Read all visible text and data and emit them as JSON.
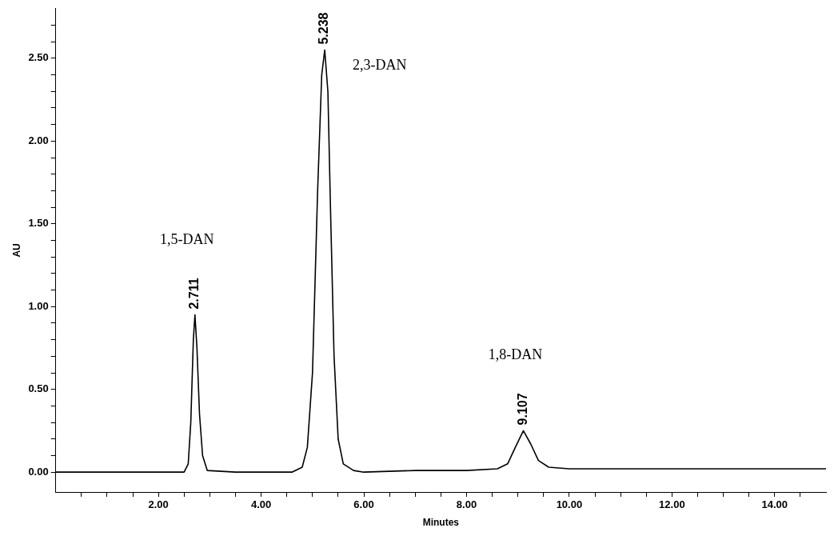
{
  "chart_data": {
    "type": "line",
    "xlabel": "Minutes",
    "ylabel": "AU",
    "color": "#000000",
    "marker": "none",
    "grid": false,
    "legend": false,
    "x": [
      0,
      1,
      2,
      2.5,
      2.58,
      2.63,
      2.68,
      2.711,
      2.75,
      2.8,
      2.86,
      2.95,
      3.5,
      4,
      4.6,
      4.8,
      4.9,
      5.0,
      5.1,
      5.18,
      5.238,
      5.3,
      5.35,
      5.42,
      5.5,
      5.6,
      5.8,
      6,
      7,
      8,
      8.6,
      8.8,
      8.95,
      9.107,
      9.25,
      9.4,
      9.6,
      10,
      12,
      14,
      15
    ],
    "values": [
      0,
      0,
      0,
      0,
      0.05,
      0.3,
      0.8,
      0.95,
      0.75,
      0.35,
      0.1,
      0.01,
      0,
      0,
      0,
      0.03,
      0.15,
      0.6,
      1.7,
      2.4,
      2.55,
      2.3,
      1.6,
      0.7,
      0.2,
      0.05,
      0.01,
      0,
      0.01,
      0.01,
      0.02,
      0.05,
      0.15,
      0.25,
      0.17,
      0.07,
      0.03,
      0.02,
      0.02,
      0.02,
      0.02
    ],
    "xlim": [
      0,
      15
    ],
    "ylim": [
      -0.12,
      2.8
    ],
    "xticks": [
      {
        "value": 0.5,
        "label": null
      },
      {
        "value": 1,
        "label": null
      },
      {
        "value": 1.5,
        "label": null
      },
      {
        "value": 2,
        "label": "2.00"
      },
      {
        "value": 2.5,
        "label": null
      },
      {
        "value": 3,
        "label": null
      },
      {
        "value": 3.5,
        "label": null
      },
      {
        "value": 4,
        "label": "4.00"
      },
      {
        "value": 4.5,
        "label": null
      },
      {
        "value": 5,
        "label": null
      },
      {
        "value": 5.5,
        "label": null
      },
      {
        "value": 6,
        "label": "6.00"
      },
      {
        "value": 6.5,
        "label": null
      },
      {
        "value": 7,
        "label": null
      },
      {
        "value": 7.5,
        "label": null
      },
      {
        "value": 8,
        "label": "8.00"
      },
      {
        "value": 8.5,
        "label": null
      },
      {
        "value": 9,
        "label": null
      },
      {
        "value": 9.5,
        "label": null
      },
      {
        "value": 10,
        "label": "10.00"
      },
      {
        "value": 10.5,
        "label": null
      },
      {
        "value": 11,
        "label": null
      },
      {
        "value": 11.5,
        "label": null
      },
      {
        "value": 12,
        "label": "12.00"
      },
      {
        "value": 12.5,
        "label": null
      },
      {
        "value": 13,
        "label": null
      },
      {
        "value": 13.5,
        "label": null
      },
      {
        "value": 14,
        "label": "14.00"
      },
      {
        "value": 14.5,
        "label": null
      }
    ],
    "yticks": [
      {
        "value": 0,
        "label": "0.00"
      },
      {
        "value": 0.1,
        "label": null
      },
      {
        "value": 0.2,
        "label": null
      },
      {
        "value": 0.3,
        "label": null
      },
      {
        "value": 0.4,
        "label": null
      },
      {
        "value": 0.5,
        "label": "0.50"
      },
      {
        "value": 0.6,
        "label": null
      },
      {
        "value": 0.7,
        "label": null
      },
      {
        "value": 0.8,
        "label": null
      },
      {
        "value": 0.9,
        "label": null
      },
      {
        "value": 1,
        "label": "1.00"
      },
      {
        "value": 1.1,
        "label": null
      },
      {
        "value": 1.2,
        "label": null
      },
      {
        "value": 1.3,
        "label": null
      },
      {
        "value": 1.4,
        "label": null
      },
      {
        "value": 1.5,
        "label": "1.50"
      },
      {
        "value": 1.6,
        "label": null
      },
      {
        "value": 1.7,
        "label": null
      },
      {
        "value": 1.8,
        "label": null
      },
      {
        "value": 1.9,
        "label": null
      },
      {
        "value": 2,
        "label": "2.00"
      },
      {
        "value": 2.1,
        "label": null
      },
      {
        "value": 2.2,
        "label": null
      },
      {
        "value": 2.3,
        "label": null
      },
      {
        "value": 2.4,
        "label": null
      },
      {
        "value": 2.5,
        "label": "2.50"
      },
      {
        "value": 2.6,
        "label": null
      },
      {
        "value": 2.7,
        "label": null
      }
    ],
    "annotations": [
      {
        "text": "2.711",
        "x": 2.711,
        "y": 0.95
      },
      {
        "text": "5.238",
        "x": 5.238,
        "y": 2.55
      },
      {
        "text": "9.107",
        "x": 9.107,
        "y": 0.25
      },
      "1,5-DAN",
      "2,3-DAN",
      "1,8-DAN"
    ]
  }
}
